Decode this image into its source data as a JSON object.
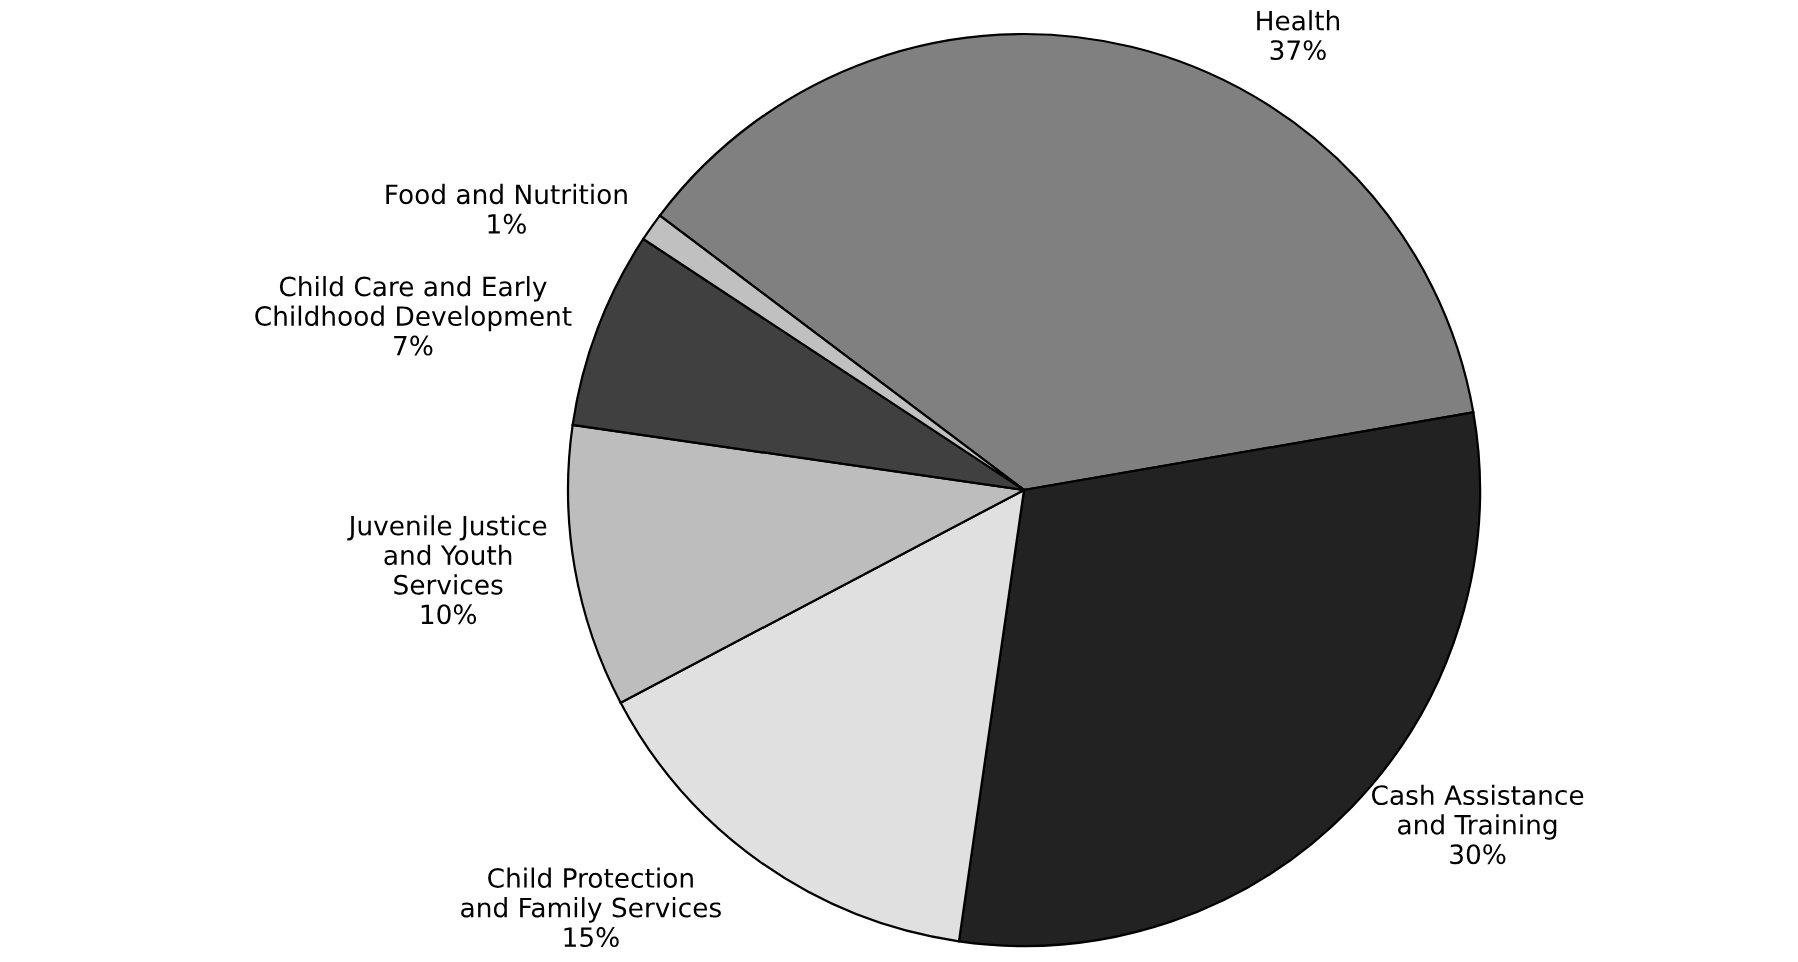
{
  "chart_data": {
    "type": "pie",
    "categories": [
      "Health",
      "Cash Assistance\nand Training",
      "Child Protection\nand Family Services",
      "Juvenile Justice\nand Youth\nServices",
      "Child Care and Early\nChildhood Development",
      "Food and Nutrition"
    ],
    "values": [
      37,
      30,
      15,
      10,
      7,
      1
    ],
    "value_labels": [
      "37%",
      "30%",
      "15%",
      "10%",
      "7%",
      "1%"
    ],
    "colors": [
      "#808080",
      "#222222",
      "#e0e0e0",
      "#bdbdbd",
      "#404040",
      "#c0c0c0"
    ]
  }
}
